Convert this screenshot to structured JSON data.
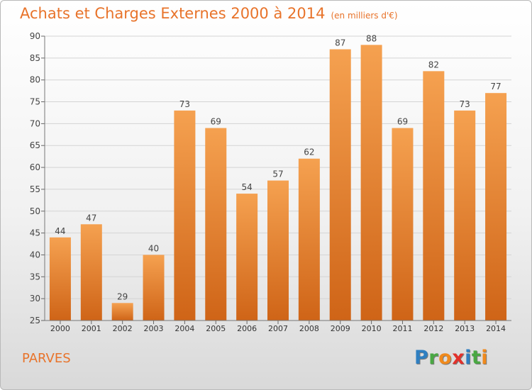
{
  "title": "Achats et Charges Externes 2000 à 2014",
  "unit": "(en milliers d'€)",
  "commune": "PARVES",
  "logo": {
    "letters": [
      "P",
      "r",
      "o",
      "x",
      "i",
      "t",
      "i"
    ],
    "colors": [
      "#2f7fc1",
      "#4aa843",
      "#f08a1d",
      "#e2312b",
      "#2f7fc1",
      "#4aa843",
      "#f08a1d"
    ]
  },
  "colors": {
    "bar_top": "#f5a150",
    "bar_bottom": "#cf6417",
    "label": "#444444"
  },
  "chart_data": {
    "type": "bar",
    "title": "Achats et Charges Externes 2000 à 2014",
    "subtitle": "(en milliers d'€)",
    "categories": [
      "2000",
      "2001",
      "2002",
      "2003",
      "2004",
      "2005",
      "2006",
      "2007",
      "2008",
      "2009",
      "2010",
      "2011",
      "2012",
      "2013",
      "2014"
    ],
    "values": [
      44,
      47,
      29,
      40,
      73,
      69,
      54,
      57,
      62,
      87,
      88,
      69,
      82,
      73,
      77
    ],
    "ylim": [
      25,
      90
    ],
    "yticks": [
      25,
      30,
      35,
      40,
      45,
      50,
      55,
      60,
      65,
      70,
      75,
      80,
      85,
      90
    ],
    "grid": true,
    "data_labels": true
  }
}
